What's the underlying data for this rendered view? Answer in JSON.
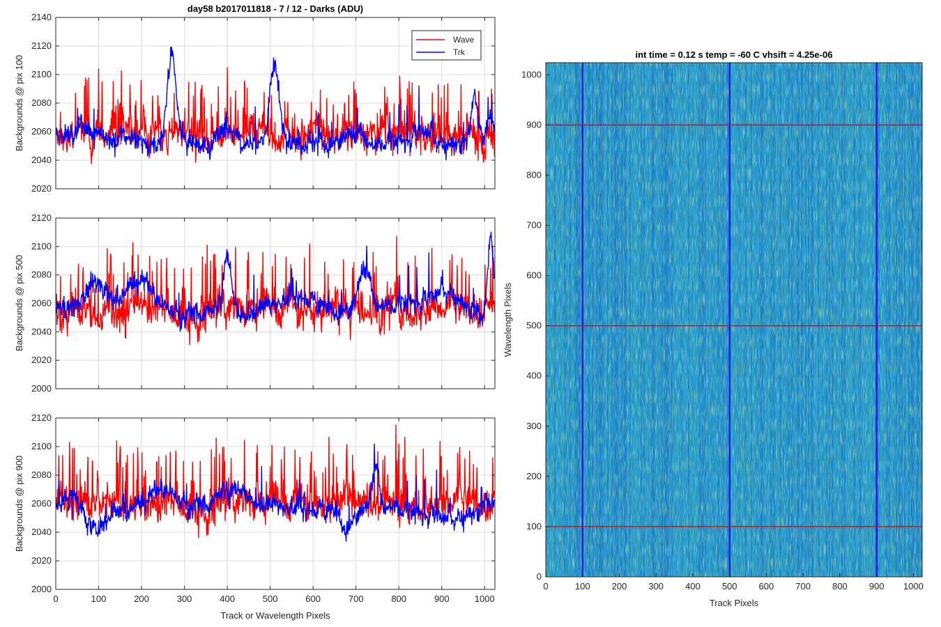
{
  "colors": {
    "wave": "#ff0000",
    "trk": "#0000ff",
    "grid": "#dcdcdc",
    "axis": "#262626",
    "heat_base": "#1f8fc9"
  },
  "chart_data": [
    {
      "type": "line",
      "title": "day58 b2017011818 - 7 / 12 - Darks (ADU)",
      "ylabel": "Backgrounds @ pix 100",
      "xlabel": "",
      "xlim": [
        0,
        1024
      ],
      "ylim": [
        2020,
        2140
      ],
      "yticks": [
        2020,
        2040,
        2060,
        2080,
        2100,
        2120,
        2140
      ],
      "xticks": [
        0,
        100,
        200,
        300,
        400,
        500,
        600,
        700,
        800,
        900,
        1000
      ],
      "show_xtick_labels": false,
      "grid": true,
      "legend": {
        "placement": "top-right",
        "entries": [
          "Wave",
          "Trk"
        ]
      },
      "series": [
        {
          "name": "Wave",
          "color": "#ff0000",
          "baseline": 2058,
          "noise": 9,
          "spikes": 22,
          "bumps": []
        },
        {
          "name": "Trk",
          "color": "#0000ff",
          "baseline": 2052,
          "noise": 6,
          "spikes": 4,
          "bumps": [
            [
              30,
              2058,
              40
            ],
            [
              90,
              2060,
              30
            ],
            [
              270,
              2118,
              14
            ],
            [
              400,
              2060,
              25
            ],
            [
              510,
              2106,
              16
            ],
            [
              700,
              2060,
              30
            ],
            [
              740,
              2046,
              20
            ],
            [
              860,
              2060,
              30
            ],
            [
              975,
              2090,
              10
            ],
            [
              1015,
              2066,
              15
            ]
          ]
        }
      ]
    },
    {
      "type": "line",
      "title": "",
      "ylabel": "Backgrounds @ pix 500",
      "xlabel": "",
      "xlim": [
        0,
        1024
      ],
      "ylim": [
        2000,
        2120
      ],
      "yticks": [
        2000,
        2020,
        2040,
        2060,
        2080,
        2100,
        2120
      ],
      "xticks": [
        0,
        100,
        200,
        300,
        400,
        500,
        600,
        700,
        800,
        900,
        1000
      ],
      "show_xtick_labels": false,
      "grid": true,
      "legend": null,
      "series": [
        {
          "name": "Wave",
          "color": "#ff0000",
          "baseline": 2055,
          "noise": 10,
          "spikes": 25,
          "bumps": []
        },
        {
          "name": "Trk",
          "color": "#0000ff",
          "baseline": 2055,
          "noise": 6,
          "spikes": 4,
          "bumps": [
            [
              100,
              2072,
              50
            ],
            [
              200,
              2074,
              40
            ],
            [
              300,
              2050,
              30
            ],
            [
              400,
              2094,
              14
            ],
            [
              560,
              2066,
              50
            ],
            [
              720,
              2086,
              18
            ],
            [
              830,
              2060,
              40
            ],
            [
              910,
              2070,
              40
            ],
            [
              1015,
              2102,
              10
            ]
          ]
        }
      ]
    },
    {
      "type": "line",
      "title": "",
      "ylabel": "Backgrounds @ pix 900",
      "xlabel": "Track or Wavelength Pixels",
      "xlim": [
        0,
        1024
      ],
      "ylim": [
        2000,
        2120
      ],
      "yticks": [
        2000,
        2020,
        2040,
        2060,
        2080,
        2100,
        2120
      ],
      "xticks": [
        0,
        100,
        200,
        300,
        400,
        500,
        600,
        700,
        800,
        900,
        1000
      ],
      "show_xtick_labels": true,
      "grid": true,
      "legend": null,
      "series": [
        {
          "name": "Wave",
          "color": "#ff0000",
          "baseline": 2060,
          "noise": 10,
          "spikes": 28,
          "bumps": []
        },
        {
          "name": "Trk",
          "color": "#0000ff",
          "baseline": 2055,
          "noise": 6,
          "spikes": 4,
          "bumps": [
            [
              40,
              2066,
              30
            ],
            [
              100,
              2044,
              30
            ],
            [
              250,
              2070,
              40
            ],
            [
              420,
              2072,
              60
            ],
            [
              560,
              2058,
              40
            ],
            [
              680,
              2044,
              20
            ],
            [
              745,
              2086,
              12
            ],
            [
              900,
              2050,
              60
            ],
            [
              1010,
              2066,
              15
            ]
          ]
        }
      ]
    },
    {
      "type": "heatmap",
      "title": "int time = 0.12 s    temp = -60 C    vhsift = 4.25e-06",
      "xlabel": "Track Pixels",
      "ylabel": "Wavelength Pixels",
      "xlim": [
        0,
        1024
      ],
      "ylim": [
        0,
        1024
      ],
      "xticks": [
        0,
        100,
        200,
        300,
        400,
        500,
        600,
        700,
        800,
        900,
        1000
      ],
      "yticks": [
        0,
        100,
        200,
        300,
        400,
        500,
        600,
        700,
        800,
        900,
        1000
      ],
      "vertical_markers": {
        "color": "#0000ff",
        "x": [
          100,
          500,
          900
        ]
      },
      "horizontal_markers": {
        "color": "#ff0000",
        "y": [
          100,
          500,
          900
        ]
      }
    }
  ]
}
